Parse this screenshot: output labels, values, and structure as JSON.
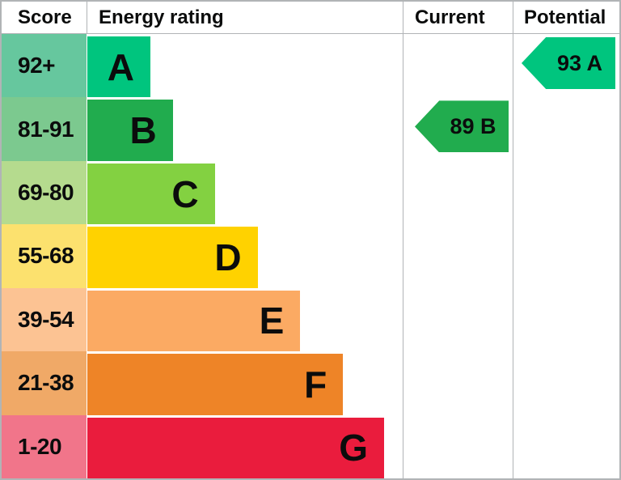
{
  "header": {
    "score": "Score",
    "energy_rating": "Energy rating",
    "current": "Current",
    "potential": "Potential"
  },
  "colors": {
    "border": "#b1b4b6",
    "text": "#0b0c0c",
    "background": "#ffffff"
  },
  "chart_data": {
    "type": "bar",
    "title": "Energy rating (EPC) chart",
    "columns": [
      "Score",
      "Energy rating",
      "Current",
      "Potential"
    ],
    "bands": [
      {
        "score_range": "92+",
        "letter": "A",
        "bar_color": "#00c57e",
        "score_bg": "#66c79e",
        "bar_width_pct": 20.0
      },
      {
        "score_range": "81-91",
        "letter": "B",
        "bar_color": "#21ac4e",
        "score_bg": "#7cc98f",
        "bar_width_pct": 27.1
      },
      {
        "score_range": "69-80",
        "letter": "C",
        "bar_color": "#83d141",
        "score_bg": "#b5db8e",
        "bar_width_pct": 40.4
      },
      {
        "score_range": "55-68",
        "letter": "D",
        "bar_color": "#ffd200",
        "score_bg": "#fce16e",
        "bar_width_pct": 54.0
      },
      {
        "score_range": "39-54",
        "letter": "E",
        "bar_color": "#fbaa63",
        "score_bg": "#fcc393",
        "bar_width_pct": 67.5
      },
      {
        "score_range": "21-38",
        "letter": "F",
        "bar_color": "#ee8427",
        "score_bg": "#f0a967",
        "bar_width_pct": 81.1
      },
      {
        "score_range": "1-20",
        "letter": "G",
        "bar_color": "#ea1c3d",
        "score_bg": "#f1758a",
        "bar_width_pct": 94.1
      }
    ],
    "current": {
      "label": "89 B",
      "value": 89,
      "band": "B",
      "color": "#21ac4e"
    },
    "potential": {
      "label": "93 A",
      "value": 93,
      "band": "A",
      "color": "#00c57e"
    }
  }
}
